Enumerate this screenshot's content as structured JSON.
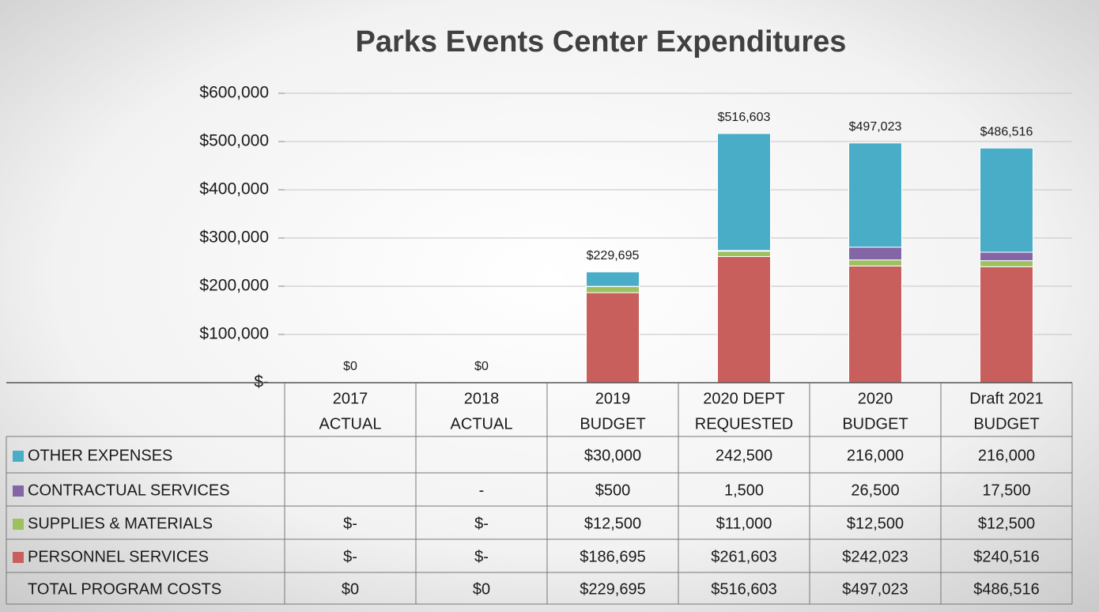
{
  "chart_data": {
    "type": "bar",
    "stacked": true,
    "title": "Parks Events Center Expenditures",
    "categories": [
      [
        "2017",
        "ACTUAL"
      ],
      [
        "2018",
        "ACTUAL"
      ],
      [
        "2019",
        "BUDGET"
      ],
      [
        "2020 DEPT",
        "REQUESTED"
      ],
      [
        "2020",
        "BUDGET"
      ],
      [
        "Draft 2021",
        "BUDGET"
      ]
    ],
    "series": [
      {
        "name": "OTHER EXPENSES",
        "color": "#4aadc7",
        "values": [
          null,
          null,
          30000,
          242500,
          216000,
          216000
        ],
        "value_labels": [
          null,
          null,
          "$30,000",
          "242,500",
          "216,000",
          "216,000"
        ]
      },
      {
        "name": "CONTRACTUAL SERVICES",
        "color": "#8466a6",
        "values": [
          null,
          0,
          500,
          1500,
          26500,
          17500
        ],
        "value_labels": [
          null,
          "-",
          "$500",
          "1,500",
          "26,500",
          "17,500"
        ]
      },
      {
        "name": "SUPPLIES & MATERIALS",
        "color": "#9dc15e",
        "values": [
          0,
          0,
          12500,
          11000,
          12500,
          12500
        ],
        "value_labels": [
          "$-",
          "$-",
          "$12,500",
          "$11,000",
          "$12,500",
          "$12,500"
        ]
      },
      {
        "name": "PERSONNEL SERVICES",
        "color": "#c95f5c",
        "values": [
          0,
          0,
          186695,
          261603,
          242023,
          240516
        ],
        "value_labels": [
          "$-",
          "$-",
          "$186,695",
          "$261,603",
          "$242,023",
          "$240,516"
        ]
      }
    ],
    "totals": {
      "name": "TOTAL PROGRAM COSTS",
      "values": [
        0,
        0,
        229695,
        516603,
        497023,
        486516
      ],
      "value_labels": [
        "$0",
        "$0",
        "$229,695",
        "$516,603",
        "$497,023",
        "$486,516"
      ]
    },
    "ylim": [
      0,
      600000
    ],
    "yticks": [
      {
        "value": 0,
        "label": "$-"
      },
      {
        "value": 100000,
        "label": "$100,000"
      },
      {
        "value": 200000,
        "label": "$200,000"
      },
      {
        "value": 300000,
        "label": "$300,000"
      },
      {
        "value": 400000,
        "label": "$400,000"
      },
      {
        "value": 500000,
        "label": "$500,000"
      },
      {
        "value": 600000,
        "label": "$600,000"
      }
    ],
    "grid": true
  }
}
